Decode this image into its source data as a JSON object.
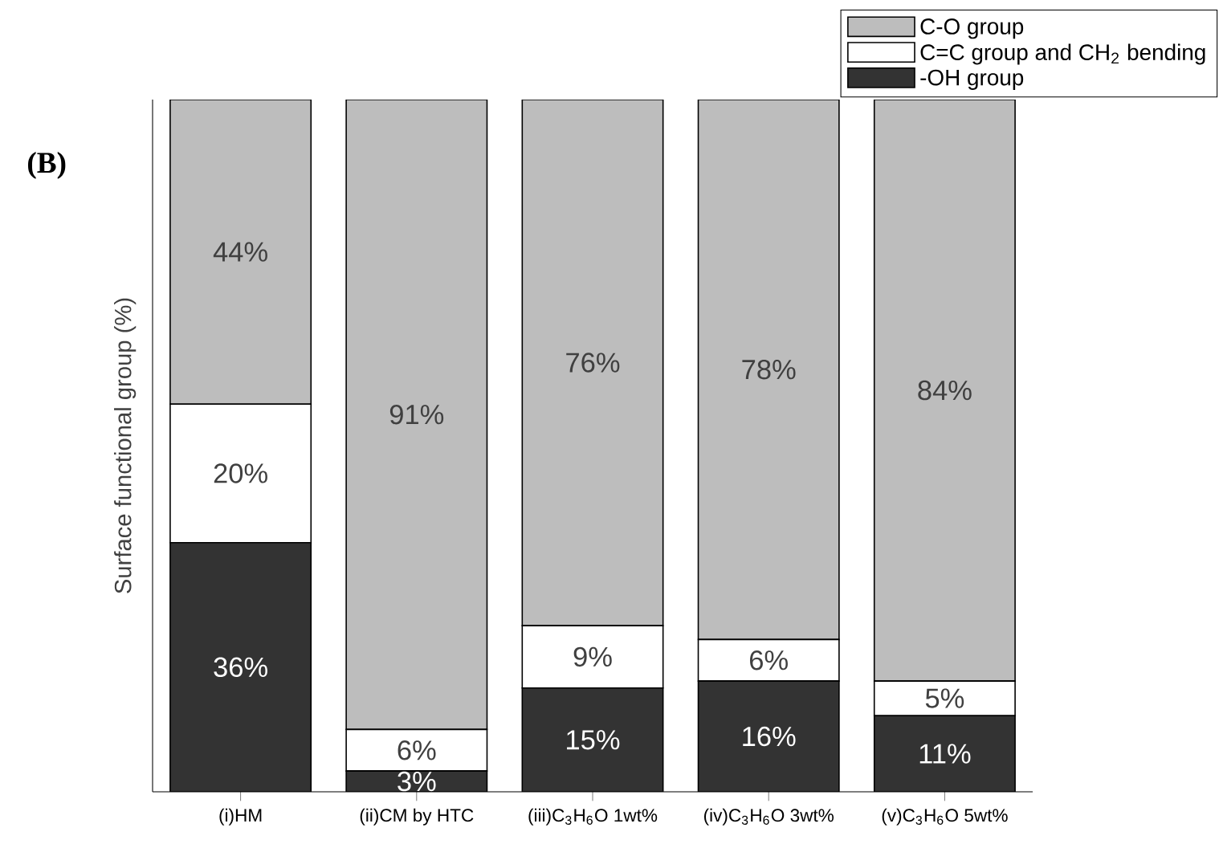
{
  "chart_data": {
    "type": "bar",
    "stacked": true,
    "ylabel": "Surface functional group (%)",
    "categories": [
      "(i)HM",
      "(ii)CM by HTC",
      "(iii)C$_{3}$H$_{6}$O 1wt%",
      "(iv)C$_{3}$H$_{6}$O 3wt%",
      "(v)C$_{3}$H$_{6}$O 5wt%"
    ],
    "series": [
      {
        "name": "-OH group",
        "color": "#333333",
        "values": [
          36,
          3,
          15,
          16,
          11
        ],
        "value_labels": [
          "36%",
          "3%",
          "15%",
          "16%",
          "11%"
        ]
      },
      {
        "name": "C=C group and CH$_{2}$ bending",
        "color": "#ffffff",
        "values": [
          20,
          6,
          9,
          6,
          5
        ],
        "value_labels": [
          "20%",
          "6%",
          "9%",
          "6%",
          "5%"
        ]
      },
      {
        "name": "C-O group",
        "color": "#bdbdbd",
        "values": [
          44,
          91,
          76,
          78,
          84
        ],
        "value_labels": [
          "44%",
          "91%",
          "76%",
          "78%",
          "84%"
        ]
      }
    ],
    "ylim": [
      0,
      100
    ],
    "tick_labels": "x",
    "legend": "top right",
    "annotations": [
      "(B)"
    ]
  }
}
